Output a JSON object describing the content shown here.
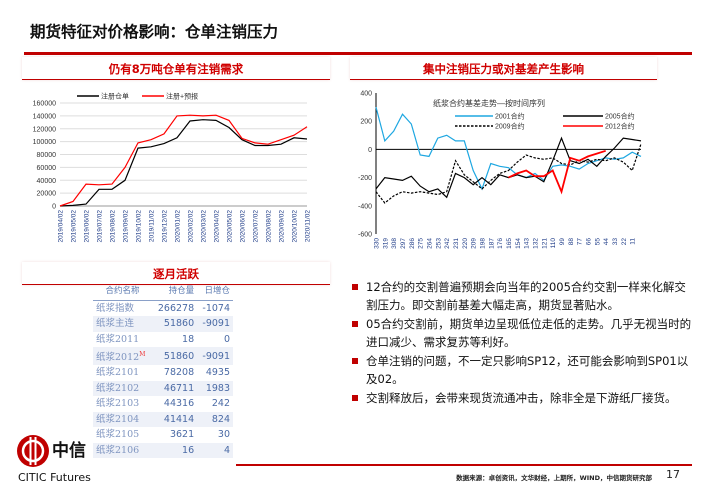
{
  "title": "期货特征对价格影响：仓单注销压力",
  "left_section_title": "仍有8万吨仓单有注销需求",
  "right_section_title": "集中注销压力或对基差产生影响",
  "table_section_title": "逐月活跃",
  "colors": {
    "accent": "#c00000",
    "table_text": "#4a6aa5"
  },
  "chart_data": [
    {
      "type": "line",
      "title": "",
      "ylim": [
        0,
        160000
      ],
      "y_ticks": [
        "0",
        "20000",
        "40000",
        "60000",
        "80000",
        "100000",
        "120000",
        "140000",
        "160000"
      ],
      "categories": [
        "2019/04/02",
        "2019/05/02",
        "2019/06/02",
        "2019/07/02",
        "2019/08/02",
        "2019/09/02",
        "2019/10/02",
        "2019/11/02",
        "2019/12/02",
        "2020/01/02",
        "2020/02/02",
        "2020/03/02",
        "2020/04/02",
        "2020/05/02",
        "2020/06/02",
        "2020/07/02",
        "2020/08/02",
        "2020/09/02",
        "2020/10/02",
        "2020/11/02"
      ],
      "legend": "top",
      "series": [
        {
          "name": "注册仓单",
          "color": "#000000",
          "values": [
            0,
            1000,
            3000,
            26000,
            26000,
            40000,
            90000,
            92000,
            97000,
            106000,
            132000,
            134000,
            133000,
            122000,
            103000,
            94000,
            94000,
            96000,
            106000,
            104000
          ]
        },
        {
          "name": "注册+预报",
          "color": "#ff0000",
          "values": [
            0,
            7000,
            34000,
            33000,
            34000,
            60000,
            98000,
            103000,
            112000,
            140000,
            141000,
            140000,
            141000,
            133000,
            105000,
            98000,
            96000,
            103000,
            110000,
            123000
          ]
        }
      ]
    },
    {
      "type": "line",
      "title": "纸浆合约基差走势—按时间序列",
      "ylim": [
        -600,
        400
      ],
      "y_ticks": [
        "-600",
        "-400",
        "-200",
        "0",
        "200",
        "400"
      ],
      "categories": [
        "330",
        "319",
        "308",
        "297",
        "286",
        "275",
        "264",
        "253",
        "242",
        "231",
        "220",
        "209",
        "198",
        "187",
        "176",
        "165",
        "154",
        "143",
        "132",
        "121",
        "110",
        "99",
        "88",
        "77",
        "66",
        "55",
        "44",
        "33",
        "22",
        "11",
        "0"
      ],
      "x_tick_labels": [
        "330",
        "319",
        "308",
        "297",
        "286",
        "275",
        "264",
        "253",
        "242",
        "231",
        "220",
        "209",
        "198",
        "187",
        "176",
        "165",
        "154",
        "143",
        "132",
        "121",
        "110",
        "99",
        "88",
        "77",
        "66",
        "55",
        "44",
        "33",
        "22",
        "11"
      ],
      "legend": "top",
      "series": [
        {
          "name": "2001合约",
          "color": "#1ea7e1",
          "dash": false,
          "values": [
            300,
            60,
            130,
            250,
            180,
            -40,
            -50,
            80,
            100,
            60,
            60,
            -150,
            -280,
            -100,
            -120,
            -130,
            -180,
            -200,
            -170,
            -220,
            -120,
            -110,
            -120,
            -140,
            -100,
            -80,
            -60,
            -70,
            -60,
            -20,
            -50
          ]
        },
        {
          "name": "2005合约",
          "color": "#000000",
          "dash": false,
          "values": [
            -280,
            -200,
            -210,
            -220,
            -190,
            -260,
            -300,
            -280,
            -340,
            -170,
            -200,
            -250,
            -200,
            -250,
            -180,
            -200,
            -180,
            -200,
            -190,
            -230,
            -80,
            80,
            -80,
            -100,
            -70,
            -120,
            -50,
            10,
            80,
            70,
            60
          ]
        },
        {
          "name": "2009合约",
          "color": "#000000",
          "dash": true,
          "values": [
            -300,
            -380,
            -330,
            -300,
            -310,
            -300,
            -310,
            -320,
            -300,
            -80,
            -180,
            -230,
            -280,
            -220,
            -170,
            -150,
            -90,
            -40,
            -60,
            -70,
            -60,
            -100,
            -110,
            -80,
            -90,
            -70,
            -80,
            -60,
            -90,
            -150,
            40
          ]
        },
        {
          "name": "2012合约",
          "color": "#ff0000",
          "dash": false,
          "values": [
            null,
            null,
            null,
            null,
            null,
            null,
            null,
            null,
            null,
            null,
            null,
            null,
            null,
            null,
            null,
            -200,
            -170,
            -150,
            -190,
            -190,
            -150,
            -300,
            -60,
            -80,
            -50,
            -30,
            -10,
            null,
            null,
            null,
            null
          ]
        }
      ]
    }
  ],
  "table": {
    "headers": [
      "合约名称",
      "持仓量",
      "日增仓"
    ],
    "rows": [
      [
        "纸浆指数",
        "266278",
        "-1074"
      ],
      [
        "纸浆主连",
        "51860",
        "-9091"
      ],
      [
        "纸浆2011",
        "18",
        "0"
      ],
      [
        "纸浆2012",
        "51860",
        "-9091"
      ],
      [
        "纸浆2101",
        "78208",
        "4935"
      ],
      [
        "纸浆2102",
        "46711",
        "1983"
      ],
      [
        "纸浆2103",
        "44316",
        "242"
      ],
      [
        "纸浆2104",
        "41414",
        "824"
      ],
      [
        "纸浆2105",
        "3621",
        "30"
      ],
      [
        "纸浆2106",
        "16",
        "4"
      ]
    ],
    "marker": "M"
  },
  "bullets": [
    "12合约的交割普遍预期会向当年的2005合约交割一样来化解交割压力。即交割前基差大幅走高，期货显著贴水。",
    "05合约交割前，期货单边呈现低位走低的走势。几乎无视当时的进口减少、需求复苏等利好。",
    "仓单注销的问题，不一定只影响SP12，还可能会影响到SP01以及02。",
    "交割释放后，会带来现货流通冲击，除非全是下游纸厂接货。"
  ],
  "logo": {
    "cn": "中信",
    "en": "CITIC Futures"
  },
  "source": "数据来源：卓创资讯，文华财经，上期所，WIND，中信期货研究部",
  "page_number": "17"
}
